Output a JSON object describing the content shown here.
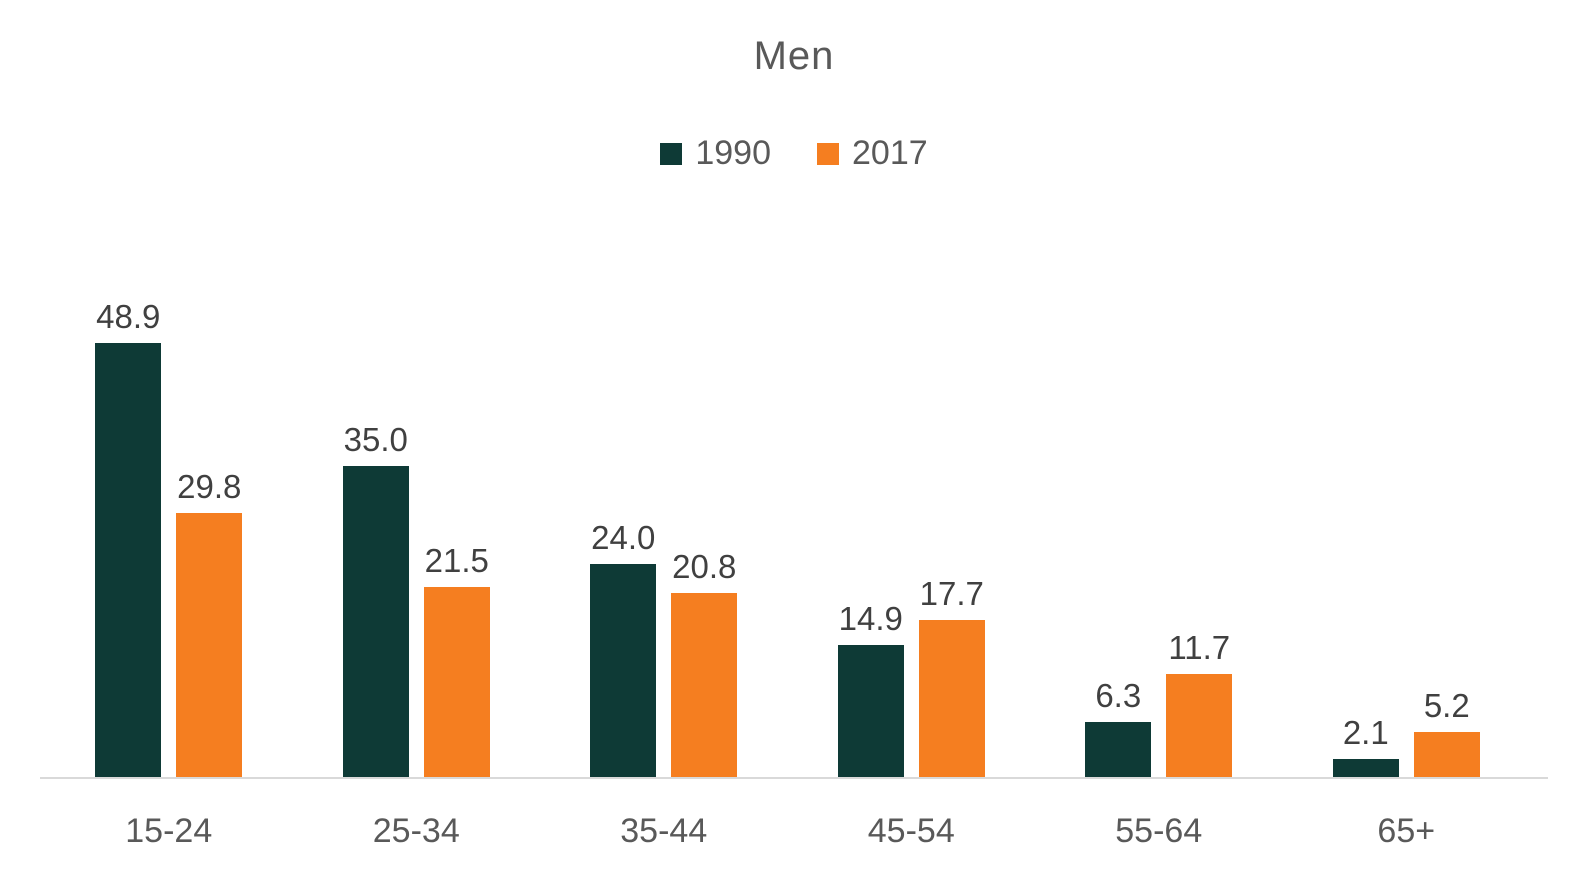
{
  "title": "Men",
  "chart_data": {
    "type": "bar",
    "title": "Men",
    "categories": [
      "15-24",
      "25-34",
      "35-44",
      "45-54",
      "55-64",
      "65+"
    ],
    "series": [
      {
        "name": "1990",
        "color": "#0e3a36",
        "values": [
          48.9,
          35.0,
          24.0,
          14.9,
          6.3,
          2.1
        ]
      },
      {
        "name": "2017",
        "color": "#f57e20",
        "values": [
          29.8,
          21.5,
          20.8,
          17.7,
          11.7,
          5.2
        ]
      }
    ],
    "value_labels": {
      "1990": [
        "48.9",
        "35.0",
        "24.0",
        "14.9",
        "6.3",
        "2.1"
      ],
      "2017": [
        "29.8",
        "21.5",
        "20.8",
        "17.7",
        "11.7",
        "5.2"
      ]
    },
    "xlabel": "",
    "ylabel": "",
    "ylim": [
      0,
      50
    ],
    "grid": false,
    "legend_position": "top",
    "axis_line_color": "#d9d9d9",
    "title_color": "#595959",
    "data_label_color": "#404040",
    "category_label_color": "#595959"
  }
}
